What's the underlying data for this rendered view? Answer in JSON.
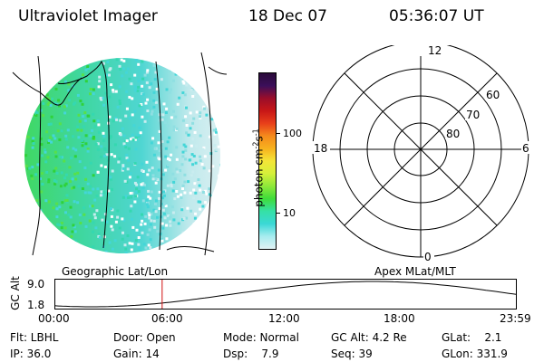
{
  "header": {
    "instrument": "Ultraviolet Imager",
    "date": "18 Dec 07",
    "time": "05:36:07 UT"
  },
  "colorbar": {
    "label": "photon cm",
    "label_exp": "-2",
    "label_unit": "s",
    "label_exp2": "-1",
    "ticks": [
      "100",
      "10"
    ],
    "colors": [
      "#2a0a3a",
      "#3b0f5a",
      "#9b0d2a",
      "#c81717",
      "#e8401a",
      "#f58a1c",
      "#f7b21e",
      "#f4e638",
      "#d5f03a",
      "#8ee83a",
      "#3fdc3a",
      "#35e0a6",
      "#3ad8d6",
      "#a7ecef",
      "#e0f2f4"
    ]
  },
  "polar": {
    "mlt_labels": {
      "top": "12",
      "left": "18",
      "right": "6",
      "bottom": "0"
    },
    "lat_labels": [
      "60",
      "70",
      "80"
    ]
  },
  "captions": {
    "left": "Geographic Lat/Lon",
    "right": "Apex MLat/MLT"
  },
  "orbit": {
    "axis_label": "GC Alt",
    "y_ticks": [
      "9.0",
      "1.8"
    ],
    "x_ticks": [
      "00:00",
      "06:00",
      "12:00",
      "18:00",
      "23:59"
    ],
    "current_time_fraction": 0.233
  },
  "status": {
    "flt": "Flt: LBHL",
    "ip": "IP: 36.0",
    "door": "Door: Open",
    "gain": "Gain: 14",
    "mode": "Mode: Normal",
    "dsp": "Dsp:    7.9",
    "gcalt": "GC Alt: 4.2 Re",
    "seq": "Seq: 39",
    "glat": "GLat:    2.1",
    "glon": "GLon: 331.9"
  }
}
